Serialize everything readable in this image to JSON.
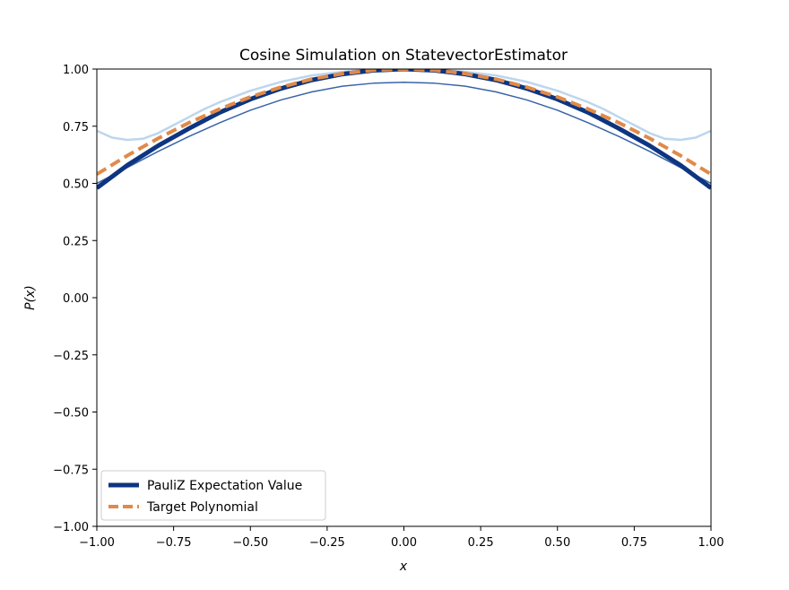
{
  "chart_data": {
    "type": "line",
    "title": "Cosine Simulation on StatevectorEstimator",
    "xlabel": "x",
    "ylabel": "P(x)",
    "xlim": [
      -1.0,
      1.0
    ],
    "ylim": [
      -1.0,
      1.0
    ],
    "x_ticks": [
      "−1.00",
      "−0.75",
      "−0.50",
      "−0.25",
      "0.00",
      "0.25",
      "0.50",
      "0.75",
      "1.00"
    ],
    "y_ticks": [
      "−1.00",
      "−0.75",
      "−0.50",
      "−0.25",
      "0.00",
      "0.25",
      "0.50",
      "0.75",
      "1.00"
    ],
    "grid": false,
    "legend_position": "lower-left",
    "series": [
      {
        "name": "PauliZ Expectation Value",
        "style": "solid-thick",
        "color": "#0d3580",
        "x": [
          -1.0,
          -0.9,
          -0.8,
          -0.7,
          -0.6,
          -0.5,
          -0.4,
          -0.3,
          -0.2,
          -0.1,
          0.0,
          0.1,
          0.2,
          0.3,
          0.4,
          0.5,
          0.6,
          0.7,
          0.8,
          0.9,
          1.0
        ],
        "y": [
          0.48,
          0.58,
          0.665,
          0.74,
          0.81,
          0.868,
          0.915,
          0.952,
          0.978,
          0.994,
          1.0,
          0.994,
          0.978,
          0.952,
          0.915,
          0.868,
          0.81,
          0.74,
          0.665,
          0.58,
          0.48
        ]
      },
      {
        "name": "Target Polynomial",
        "style": "dashed",
        "color": "#e08a4a",
        "x": [
          -1.0,
          -0.9,
          -0.8,
          -0.7,
          -0.6,
          -0.5,
          -0.4,
          -0.3,
          -0.2,
          -0.1,
          0.0,
          0.1,
          0.2,
          0.3,
          0.4,
          0.5,
          0.6,
          0.7,
          0.8,
          0.9,
          1.0
        ],
        "y": [
          0.54,
          0.622,
          0.697,
          0.765,
          0.825,
          0.878,
          0.921,
          0.956,
          0.98,
          0.995,
          1.0,
          0.995,
          0.98,
          0.956,
          0.921,
          0.878,
          0.825,
          0.765,
          0.697,
          0.622,
          0.54
        ]
      },
      {
        "name": "",
        "style": "solid-thin",
        "color": "#3a64a8",
        "x": [
          -1.0,
          -0.9,
          -0.8,
          -0.7,
          -0.6,
          -0.5,
          -0.4,
          -0.3,
          -0.2,
          -0.1,
          0.0,
          0.1,
          0.2,
          0.3,
          0.4,
          0.5,
          0.6,
          0.7,
          0.8,
          0.9,
          1.0
        ],
        "y": [
          0.5,
          0.57,
          0.64,
          0.705,
          0.765,
          0.82,
          0.865,
          0.9,
          0.925,
          0.938,
          0.942,
          0.938,
          0.925,
          0.9,
          0.865,
          0.82,
          0.765,
          0.705,
          0.64,
          0.57,
          0.5
        ]
      },
      {
        "name": "",
        "style": "solid-faint",
        "color": "#bcd6ee",
        "x": [
          -1.0,
          -0.95,
          -0.9,
          -0.85,
          -0.8,
          -0.75,
          -0.7,
          -0.65,
          -0.6,
          -0.5,
          -0.4,
          -0.3,
          -0.2,
          -0.1,
          0.0,
          0.1,
          0.2,
          0.3,
          0.4,
          0.5,
          0.6,
          0.65,
          0.7,
          0.75,
          0.8,
          0.85,
          0.9,
          0.95,
          1.0
        ],
        "y": [
          0.73,
          0.7,
          0.69,
          0.695,
          0.72,
          0.755,
          0.79,
          0.825,
          0.855,
          0.905,
          0.944,
          0.972,
          0.988,
          0.997,
          1.0,
          0.997,
          0.988,
          0.972,
          0.944,
          0.905,
          0.855,
          0.825,
          0.79,
          0.755,
          0.72,
          0.695,
          0.69,
          0.7,
          0.73
        ]
      }
    ]
  }
}
